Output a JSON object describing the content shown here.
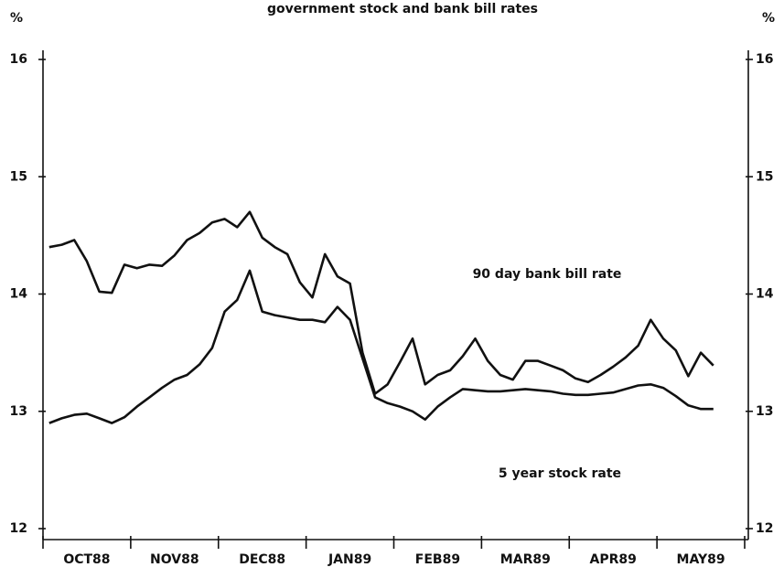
{
  "chart_data": {
    "type": "line",
    "title": "government stock and bank bill rates",
    "y_label": "%",
    "y2_label": "%",
    "annotations": [
      "90 day bank bill rate",
      "5 year stock rate"
    ],
    "categories": [
      null,
      null,
      null,
      "OCT88",
      null,
      null,
      null,
      null,
      null,
      null,
      "NOV88",
      null,
      null,
      null,
      null,
      null,
      null,
      "DEC88",
      null,
      null,
      null,
      null,
      null,
      null,
      "JAN89",
      null,
      null,
      null,
      null,
      null,
      null,
      "FEB89",
      null,
      null,
      null,
      null,
      null,
      null,
      "MAR89",
      null,
      null,
      null,
      null,
      null,
      null,
      "APR89",
      null,
      null,
      null,
      null,
      null,
      null,
      "MAY89",
      null,
      null,
      null
    ],
    "series": [
      {
        "name": "90 day bank bill rate",
        "color": "#111111",
        "values": [
          14.4,
          14.42,
          14.46,
          14.28,
          14.02,
          14.01,
          14.25,
          14.22,
          14.25,
          14.24,
          14.33,
          14.46,
          14.52,
          14.61,
          14.64,
          14.57,
          14.7,
          14.48,
          14.4,
          14.34,
          14.1,
          13.97,
          14.34,
          14.15,
          14.09,
          13.5,
          13.15,
          13.23,
          13.42,
          13.62,
          13.23,
          13.31,
          13.35,
          13.47,
          13.62,
          13.43,
          13.31,
          13.27,
          13.43,
          13.43,
          13.39,
          13.35,
          13.28,
          13.25,
          13.31,
          13.38,
          13.46,
          13.56,
          13.78,
          13.62,
          13.52,
          13.3,
          13.5,
          13.39,
          null,
          null
        ]
      },
      {
        "name": "5 year stock rate",
        "color": "#111111",
        "values": [
          12.9,
          12.94,
          12.97,
          12.98,
          12.94,
          12.9,
          12.95,
          13.04,
          13.12,
          13.2,
          13.27,
          13.31,
          13.4,
          13.54,
          13.85,
          13.95,
          14.2,
          13.85,
          13.82,
          13.8,
          13.78,
          13.78,
          13.76,
          13.89,
          13.78,
          13.45,
          13.12,
          13.07,
          13.04,
          13.0,
          12.93,
          13.04,
          13.12,
          13.19,
          13.18,
          13.17,
          13.17,
          13.18,
          13.19,
          13.18,
          13.17,
          13.15,
          13.14,
          13.14,
          13.15,
          13.16,
          13.19,
          13.22,
          13.23,
          13.2,
          13.13,
          13.05,
          13.02,
          13.02,
          null,
          null
        ]
      }
    ],
    "ylim": [
      12,
      16
    ],
    "yticks": [
      12,
      13,
      14,
      15,
      16
    ],
    "y2lim": [
      12,
      16
    ],
    "y2ticks": [
      12,
      13,
      14,
      15,
      16
    ],
    "grid": false
  }
}
